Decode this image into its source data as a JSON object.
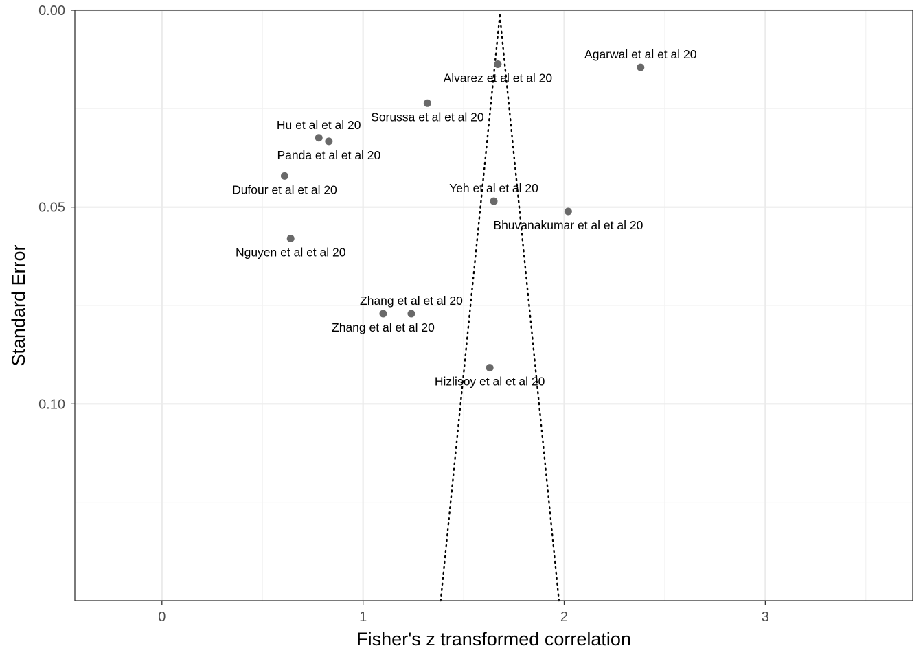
{
  "chart_data": {
    "type": "scatter",
    "subtype": "funnel",
    "title": "",
    "xlabel": "Fisher's z transformed correlation",
    "ylabel": "Standard Error",
    "xlim": [
      -0.433,
      3.733
    ],
    "ylim": [
      0.0,
      0.15
    ],
    "y_reversed": true,
    "x_ticks": [
      0,
      1,
      2,
      3
    ],
    "x_tick_labels": [
      "0",
      "1",
      "2",
      "3"
    ],
    "y_ticks": [
      0.0,
      0.05,
      0.1
    ],
    "y_tick_labels": [
      "0.00",
      "0.05",
      "0.10"
    ],
    "grid": true,
    "legend": "none",
    "funnel": {
      "center": 1.68,
      "se_max": 0.15,
      "style": "dotted"
    },
    "points": [
      {
        "label": "Agarwal et al  et al 20",
        "x": 2.38,
        "se": 0.0145,
        "label_pos": "above"
      },
      {
        "label": "Alvarez et al  et al 20",
        "x": 1.67,
        "se": 0.0137,
        "label_pos": "below"
      },
      {
        "label": "Sorussa et al  et al 20",
        "x": 1.32,
        "se": 0.0236,
        "label_pos": "below"
      },
      {
        "label": "Hu et al  et al 20",
        "x": 0.78,
        "se": 0.0324,
        "label_pos": "above"
      },
      {
        "label": "Panda et al  et al 20",
        "x": 0.83,
        "se": 0.0333,
        "label_pos": "below"
      },
      {
        "label": "Dufour et al  et al 20",
        "x": 0.61,
        "se": 0.0421,
        "label_pos": "below"
      },
      {
        "label": "Yeh et al  et al 20",
        "x": 1.65,
        "se": 0.0485,
        "label_pos": "above"
      },
      {
        "label": "Bhuvanakumar et al  et al 20",
        "x": 2.02,
        "se": 0.0511,
        "label_pos": "below"
      },
      {
        "label": "Nguyen et al  et al 20",
        "x": 0.64,
        "se": 0.058,
        "label_pos": "below"
      },
      {
        "label": "Zhang et al  et al 20",
        "x": 1.24,
        "se": 0.0771,
        "label_pos": "above"
      },
      {
        "label": "Zhang et al  et al 20",
        "x": 1.1,
        "se": 0.0771,
        "label_pos": "below"
      },
      {
        "label": "Hizlisoy et al  et al 20",
        "x": 1.63,
        "se": 0.0908,
        "label_pos": "below"
      }
    ],
    "colors": {
      "point": "#696969",
      "grid_major": "#ebebeb",
      "grid_minor": "#f2f2f2",
      "panel_border": "#333333",
      "funnel": "#000000"
    }
  }
}
